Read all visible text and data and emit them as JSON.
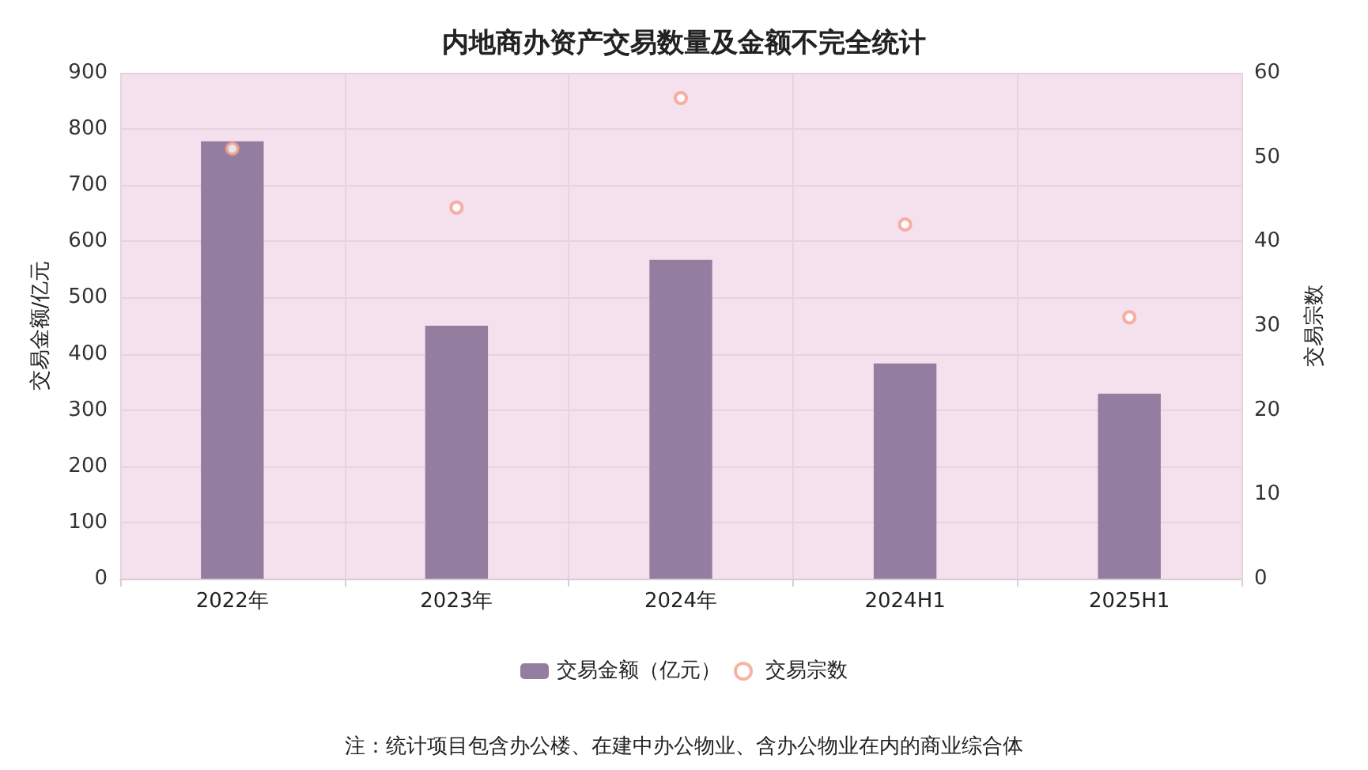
{
  "chart_data": {
    "type": "bar",
    "title": "内地商办资产交易数量及金额不完全统计",
    "categories": [
      "2022年",
      "2023年",
      "2024年",
      "2024H1",
      "2025H1"
    ],
    "series": [
      {
        "name": "交易金额（亿元）",
        "color": "#937ea0",
        "values": [
          778,
          450,
          567,
          383,
          329
        ]
      },
      {
        "name": "交易宗数",
        "type": "scatter",
        "axis": "y2",
        "color": "#f4a08c",
        "marker": "circle",
        "values": [
          51,
          44,
          57,
          42,
          31
        ]
      }
    ],
    "ylabel": "交易金额/亿元",
    "y2label": "交易宗数",
    "ylim": [
      0,
      900
    ],
    "yticks": [
      0,
      100,
      200,
      300,
      400,
      500,
      600,
      700,
      800,
      900
    ],
    "y2lim": [
      0,
      60
    ],
    "y2ticks": [
      0,
      10,
      20,
      30,
      40,
      50,
      60
    ],
    "grid": true,
    "legend": "bottom",
    "annotations": [
      "注：统计项目包含办公楼、在建中办公物业、含办公物业在内的商业综合体"
    ]
  }
}
